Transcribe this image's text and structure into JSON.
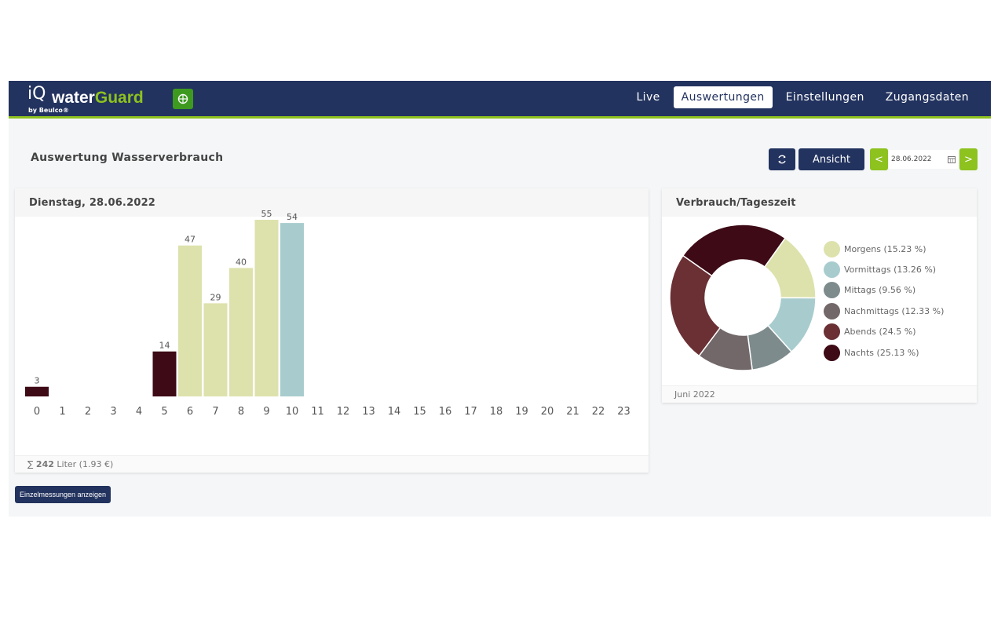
{
  "header": {
    "logo": {
      "iq": "iQ",
      "brand_1": "water",
      "brand_2": "Guard",
      "byline": "by Beulco®"
    },
    "nav": [
      "Live",
      "Auswertungen",
      "Einstellungen",
      "Zugangsdaten"
    ],
    "active_nav": "Auswertungen",
    "colors": {
      "bar": "#23335f",
      "accent": "#8dc21f"
    }
  },
  "page": {
    "title": "Auswertung Wasserverbrauch",
    "view_button": "Ansicht",
    "prev_label": "<",
    "next_label": ">",
    "date_value": "28.06.2022",
    "details_button": "Einzelmessungen anzeigen"
  },
  "bar_panel": {
    "title": "Dienstag, 28.06.2022",
    "footer_prefix": "∑ ",
    "footer_total": "242",
    "footer_suffix": " Liter (1.93 €)"
  },
  "donut_panel": {
    "title": "Verbrauch/Tageszeit",
    "footer": "Juni 2022"
  },
  "chart_data": [
    {
      "type": "bar",
      "categories": [
        "0",
        "1",
        "2",
        "3",
        "4",
        "5",
        "6",
        "7",
        "8",
        "9",
        "10",
        "11",
        "12",
        "13",
        "14",
        "15",
        "16",
        "17",
        "18",
        "19",
        "20",
        "21",
        "22",
        "23"
      ],
      "values": [
        3,
        0,
        0,
        0,
        0,
        14,
        47,
        29,
        40,
        55,
        54,
        0,
        0,
        0,
        0,
        0,
        0,
        0,
        0,
        0,
        0,
        0,
        0,
        0
      ],
      "labels": [
        "3",
        "",
        "",
        "",
        "",
        "14",
        "47",
        "29",
        "40",
        "55",
        "54",
        "",
        "",
        "",
        "",
        "",
        "",
        "",
        "",
        "",
        "",
        "",
        "",
        ""
      ],
      "colors": [
        "#3d0a15",
        "",
        "",
        "",
        "",
        "#3d0a15",
        "#dde2ac",
        "#dde2ac",
        "#dde2ac",
        "#dde2ac",
        "#a8ccce",
        "",
        "",
        "",
        "",
        "",
        "",
        "",
        "",
        "",
        "",
        "",
        "",
        ""
      ],
      "ylim": [
        0,
        55
      ],
      "grid": false
    },
    {
      "type": "pie",
      "donut": true,
      "labels": [
        "Morgens (15.23 %)",
        "Vormittags (13.26 %)",
        "Mittags (9.56 %)",
        "Nachmittags (12.33 %)",
        "Abends (24.5 %)",
        "Nachts (25.13 %)"
      ],
      "values": [
        15.23,
        13.26,
        9.56,
        12.33,
        24.5,
        25.13
      ],
      "colors": [
        "#dde2ac",
        "#a8ccce",
        "#7d8b8c",
        "#726869",
        "#6a3034",
        "#3d0a15"
      ],
      "legend": "right"
    }
  ]
}
